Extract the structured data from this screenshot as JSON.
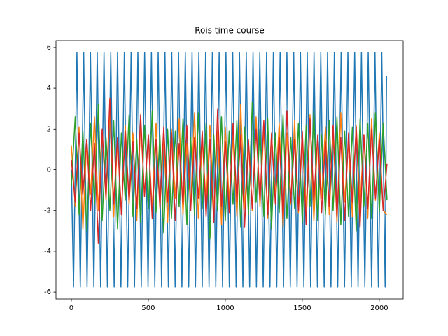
{
  "chart_data": {
    "type": "line",
    "title": "Rois time course",
    "x": [
      0,
      25,
      50,
      75,
      100,
      125,
      150,
      175,
      200,
      225,
      250,
      275,
      300,
      325,
      350,
      375,
      400,
      425,
      450,
      475,
      500,
      525,
      550,
      575,
      600,
      625,
      650,
      675,
      700,
      725,
      750,
      775,
      800,
      825,
      850,
      875,
      900,
      925,
      950,
      975,
      1000,
      1025,
      1050,
      1075,
      1100,
      1125,
      1150,
      1175,
      1200,
      1225,
      1250,
      1275,
      1300,
      1325,
      1350,
      1375,
      1400,
      1425,
      1450,
      1475,
      1500,
      1525,
      1550,
      1575,
      1600,
      1625,
      1650,
      1675,
      1700,
      1725,
      1750,
      1775,
      1800,
      1825,
      1850,
      1875,
      1900,
      1925,
      1950,
      1975,
      2000,
      2025,
      2050
    ],
    "series": [
      {
        "color": "#1f77b4",
        "x": [
          0,
          14,
          36,
          58,
          80,
          102,
          124,
          146,
          168,
          190,
          212,
          234,
          256,
          278,
          300,
          322,
          344,
          366,
          388,
          410,
          432,
          454,
          476,
          498,
          520,
          542,
          564,
          586,
          608,
          630,
          652,
          674,
          696,
          718,
          740,
          762,
          784,
          806,
          828,
          850,
          872,
          894,
          916,
          938,
          960,
          982,
          1004,
          1026,
          1048,
          1070,
          1092,
          1114,
          1136,
          1158,
          1180,
          1202,
          1224,
          1246,
          1268,
          1290,
          1312,
          1334,
          1356,
          1378,
          1400,
          1422,
          1444,
          1466,
          1488,
          1510,
          1532,
          1554,
          1576,
          1598,
          1620,
          1642,
          1664,
          1686,
          1708,
          1730,
          1752,
          1774,
          1796,
          1818,
          1840,
          1862,
          1884,
          1906,
          1928,
          1950,
          1972,
          1994,
          2016,
          2038,
          2047
        ],
        "values": [
          0,
          -5.75,
          5.75,
          -5.75,
          5.75,
          -5.75,
          5.75,
          -5.75,
          5.75,
          -5.75,
          5.75,
          -5.75,
          5.75,
          -5.75,
          5.75,
          -5.75,
          5.75,
          -5.75,
          5.75,
          -5.75,
          5.75,
          -5.75,
          5.75,
          -5.75,
          5.75,
          -5.75,
          5.75,
          -5.75,
          5.75,
          -5.75,
          5.75,
          -5.75,
          5.75,
          -5.75,
          5.75,
          -5.75,
          5.75,
          -5.75,
          5.75,
          -5.75,
          5.75,
          -5.75,
          5.75,
          -5.75,
          5.75,
          -5.75,
          5.75,
          -5.75,
          5.75,
          -5.75,
          5.75,
          -5.75,
          5.75,
          -5.75,
          5.75,
          -5.75,
          5.75,
          -5.75,
          5.75,
          -5.75,
          5.75,
          -5.75,
          5.75,
          -5.75,
          5.75,
          -5.75,
          5.75,
          -5.75,
          5.75,
          -5.75,
          5.75,
          -5.75,
          5.75,
          -5.75,
          5.75,
          -5.75,
          5.75,
          -5.75,
          5.75,
          -5.75,
          5.75,
          -5.75,
          5.75,
          -5.75,
          5.75,
          -5.75,
          5.75,
          -5.75,
          5.75,
          -5.75,
          5.75,
          -5.75,
          5.75,
          -5.75,
          4.6
        ]
      },
      {
        "color": "#ff7f0e",
        "values": [
          1.2,
          -1.8,
          2.1,
          -2.9,
          1.5,
          -1.2,
          2.6,
          -2.0,
          1.9,
          -1.5,
          2.9,
          -2.3,
          1.4,
          -2.1,
          2.2,
          -1.7,
          1.8,
          -2.5,
          2.4,
          -1.3,
          1.7,
          -2.0,
          2.3,
          -1.9,
          1.6,
          -2.6,
          2.0,
          -1.4,
          2.5,
          -2.2,
          1.3,
          -1.8,
          2.8,
          -2.4,
          1.5,
          -1.6,
          2.2,
          -2.1,
          1.9,
          -2.7,
          2.1,
          -1.5,
          1.6,
          -2.3,
          3.2,
          -1.9,
          1.4,
          -2.0,
          2.6,
          -1.8,
          2.0,
          -2.4,
          1.7,
          -1.3,
          2.3,
          -2.8,
          1.8,
          -1.7,
          2.4,
          -2.1,
          1.5,
          -1.9,
          2.7,
          -2.5,
          1.6,
          -1.4,
          2.1,
          -2.2,
          1.9,
          -2.6,
          2.8,
          -1.6,
          1.4,
          -2.3,
          2.2,
          -1.8,
          1.7,
          -2.4,
          2.5,
          -1.5,
          1.8,
          -2.0,
          -2.2
        ]
      },
      {
        "color": "#2ca02c",
        "values": [
          -0.8,
          2.6,
          -2.2,
          1.9,
          -3.0,
          2.3,
          -1.7,
          3.2,
          -2.5,
          1.6,
          -2.0,
          2.4,
          -2.9,
          1.8,
          -1.5,
          2.7,
          -2.3,
          1.5,
          -2.6,
          2.2,
          -1.9,
          2.9,
          -2.1,
          1.7,
          -3.1,
          2.0,
          -2.4,
          1.9,
          -1.8,
          2.5,
          -2.7,
          1.6,
          -2.2,
          2.8,
          -1.9,
          2.3,
          -3.4,
          1.7,
          -2.0,
          2.6,
          -2.5,
          1.9,
          -1.7,
          2.4,
          -2.8,
          2.1,
          -2.2,
          3.3,
          -1.6,
          2.0,
          -2.3,
          2.5,
          -2.9,
          1.8,
          -2.1,
          2.7,
          -2.4,
          1.6,
          -1.9,
          2.3,
          -2.6,
          2.2,
          -1.8,
          2.9,
          -2.5,
          1.7,
          -2.2,
          2.4,
          -2.0,
          2.6,
          -2.7,
          1.9,
          -2.3,
          2.1,
          -3.0,
          2.5,
          -1.8,
          2.3,
          -2.4,
          2.8,
          -2.1,
          2.3,
          -1.5
        ]
      },
      {
        "color": "#d62728",
        "values": [
          0.5,
          -1.6,
          1.8,
          -1.2,
          1.5,
          -2.0,
          1.3,
          -3.6,
          2.0,
          -1.4,
          3.5,
          -1.7,
          1.6,
          -2.2,
          1.9,
          -1.5,
          1.4,
          -1.9,
          2.7,
          -1.3,
          1.7,
          -2.4,
          1.5,
          -1.8,
          2.1,
          -1.6,
          1.8,
          -2.5,
          1.3,
          -1.7,
          2.2,
          -2.0,
          1.6,
          -1.4,
          1.9,
          -2.3,
          1.5,
          -2.6,
          3.0,
          -1.8,
          1.4,
          -2.1,
          2.3,
          -1.6,
          1.7,
          -2.8,
          1.5,
          -1.9,
          2.0,
          -1.5,
          2.4,
          -2.2,
          1.8,
          -1.7,
          1.6,
          -2.4,
          2.9,
          -1.6,
          1.5,
          -2.0,
          1.9,
          -2.7,
          2.5,
          -1.5,
          1.7,
          -2.1,
          1.4,
          -1.8,
          2.2,
          -2.3,
          1.6,
          -2.5,
          1.8,
          -1.6,
          2.1,
          -2.8,
          1.7,
          -1.9,
          2.0,
          -1.4,
          1.5,
          -2.0,
          0.3
        ]
      }
    ],
    "xlim": [
      -100,
      2155
    ],
    "ylim": [
      -6.34,
      6.34
    ],
    "xticks": [
      0,
      500,
      1000,
      1500,
      2000
    ],
    "yticks": [
      -6,
      -4,
      -2,
      0,
      2,
      4,
      6
    ],
    "grid": false
  }
}
